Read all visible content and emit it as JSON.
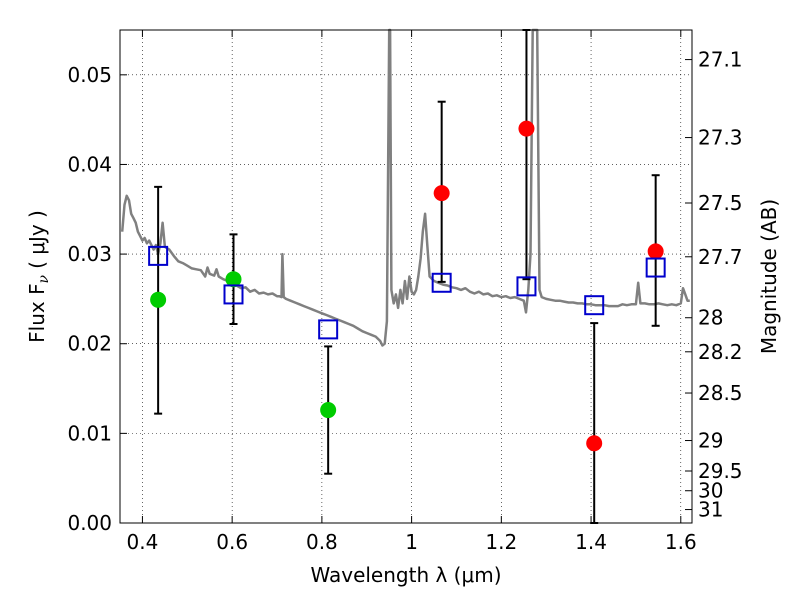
{
  "chart_data": {
    "type": "scatter",
    "title": "",
    "xlabel": "Wavelength  λ (μm)",
    "ylabel": "Flux  F",
    "ylabel_sub": "ν",
    "ylabel_unit": "( μJy )",
    "ylabel_right": "Magnitude (AB)",
    "xlim": [
      0.35,
      1.625
    ],
    "ylim": [
      0.0,
      0.055
    ],
    "grid": true,
    "x_ticks": [
      {
        "value": 0.4,
        "label": "0.4"
      },
      {
        "value": 0.6,
        "label": "0.6"
      },
      {
        "value": 0.8,
        "label": "0.8"
      },
      {
        "value": 1.0,
        "label": "1"
      },
      {
        "value": 1.2,
        "label": "1.2"
      },
      {
        "value": 1.4,
        "label": "1.4"
      },
      {
        "value": 1.6,
        "label": "1.6"
      }
    ],
    "y_ticks": [
      {
        "value": 0.0,
        "label": "0.00"
      },
      {
        "value": 0.01,
        "label": "0.01"
      },
      {
        "value": 0.02,
        "label": "0.02"
      },
      {
        "value": 0.03,
        "label": "0.03"
      },
      {
        "value": 0.04,
        "label": "0.04"
      },
      {
        "value": 0.05,
        "label": "0.05"
      }
    ],
    "right_ticks": [
      {
        "flux": 0.0517,
        "label": "27.1"
      },
      {
        "flux": 0.043,
        "label": "27.3"
      },
      {
        "flux": 0.0357,
        "label": "27.5"
      },
      {
        "flux": 0.0297,
        "label": "27.7"
      },
      {
        "flux": 0.0229,
        "label": "28"
      },
      {
        "flux": 0.0191,
        "label": "28.2"
      },
      {
        "flux": 0.0145,
        "label": "28.5"
      },
      {
        "flux": 0.0092,
        "label": "29"
      },
      {
        "flux": 0.0058,
        "label": "29.5"
      },
      {
        "flux": 0.0036,
        "label": "30"
      },
      {
        "flux": 0.0015,
        "label": "31"
      }
    ],
    "series": [
      {
        "kind": "line",
        "color": "#808080",
        "points": [
          [
            0.355,
            0.0325
          ],
          [
            0.36,
            0.0355
          ],
          [
            0.365,
            0.0365
          ],
          [
            0.37,
            0.036
          ],
          [
            0.375,
            0.0345
          ],
          [
            0.38,
            0.034
          ],
          [
            0.385,
            0.0335
          ],
          [
            0.39,
            0.0325
          ],
          [
            0.395,
            0.032
          ],
          [
            0.4,
            0.0315
          ],
          [
            0.405,
            0.0318
          ],
          [
            0.41,
            0.0312
          ],
          [
            0.415,
            0.0315
          ],
          [
            0.42,
            0.031
          ],
          [
            0.425,
            0.0305
          ],
          [
            0.43,
            0.031
          ],
          [
            0.435,
            0.03
          ],
          [
            0.44,
            0.0312
          ],
          [
            0.445,
            0.0335
          ],
          [
            0.45,
            0.0308
          ],
          [
            0.46,
            0.0305
          ],
          [
            0.47,
            0.0298
          ],
          [
            0.48,
            0.0292
          ],
          [
            0.49,
            0.029
          ],
          [
            0.5,
            0.0287
          ],
          [
            0.51,
            0.0284
          ],
          [
            0.52,
            0.0283
          ],
          [
            0.53,
            0.0282
          ],
          [
            0.54,
            0.0275
          ],
          [
            0.545,
            0.0285
          ],
          [
            0.55,
            0.0278
          ],
          [
            0.56,
            0.0276
          ],
          [
            0.565,
            0.0283
          ],
          [
            0.57,
            0.0275
          ],
          [
            0.58,
            0.0272
          ],
          [
            0.59,
            0.027
          ],
          [
            0.6,
            0.0268
          ],
          [
            0.61,
            0.0265
          ],
          [
            0.62,
            0.0262
          ],
          [
            0.63,
            0.0263
          ],
          [
            0.64,
            0.0258
          ],
          [
            0.65,
            0.026
          ],
          [
            0.66,
            0.0256
          ],
          [
            0.67,
            0.0257
          ],
          [
            0.68,
            0.0255
          ],
          [
            0.69,
            0.0256
          ],
          [
            0.7,
            0.0253
          ],
          [
            0.705,
            0.0253
          ],
          [
            0.71,
            0.0252
          ],
          [
            0.712,
            0.03
          ],
          [
            0.715,
            0.0252
          ],
          [
            0.72,
            0.025
          ],
          [
            0.73,
            0.0248
          ],
          [
            0.74,
            0.0246
          ],
          [
            0.75,
            0.0244
          ],
          [
            0.76,
            0.0242
          ],
          [
            0.77,
            0.024
          ],
          [
            0.78,
            0.0238
          ],
          [
            0.79,
            0.0236
          ],
          [
            0.8,
            0.0234
          ],
          [
            0.81,
            0.0232
          ],
          [
            0.82,
            0.023
          ],
          [
            0.83,
            0.0228
          ],
          [
            0.84,
            0.0226
          ],
          [
            0.85,
            0.0224
          ],
          [
            0.86,
            0.0222
          ],
          [
            0.87,
            0.022
          ],
          [
            0.88,
            0.0217
          ],
          [
            0.89,
            0.0214
          ],
          [
            0.9,
            0.0212
          ],
          [
            0.91,
            0.021
          ],
          [
            0.92,
            0.0208
          ],
          [
            0.93,
            0.0203
          ],
          [
            0.935,
            0.0198
          ],
          [
            0.94,
            0.02
          ],
          [
            0.945,
            0.0225
          ],
          [
            0.95,
            0.055
          ],
          [
            0.952,
            0.055
          ],
          [
            0.955,
            0.026
          ],
          [
            0.96,
            0.0245
          ],
          [
            0.965,
            0.0255
          ],
          [
            0.97,
            0.024
          ],
          [
            0.975,
            0.026
          ],
          [
            0.98,
            0.0245
          ],
          [
            0.985,
            0.027
          ],
          [
            0.99,
            0.025
          ],
          [
            0.995,
            0.0275
          ],
          [
            1.0,
            0.0258
          ],
          [
            1.005,
            0.0255
          ],
          [
            1.01,
            0.026
          ],
          [
            1.015,
            0.0275
          ],
          [
            1.02,
            0.0295
          ],
          [
            1.025,
            0.0325
          ],
          [
            1.03,
            0.0345
          ],
          [
            1.035,
            0.031
          ],
          [
            1.04,
            0.0275
          ],
          [
            1.05,
            0.027
          ],
          [
            1.06,
            0.0268
          ],
          [
            1.07,
            0.0266
          ],
          [
            1.08,
            0.0265
          ],
          [
            1.09,
            0.0263
          ],
          [
            1.1,
            0.0262
          ],
          [
            1.11,
            0.026
          ],
          [
            1.12,
            0.0262
          ],
          [
            1.13,
            0.0258
          ],
          [
            1.14,
            0.0256
          ],
          [
            1.15,
            0.0258
          ],
          [
            1.16,
            0.0255
          ],
          [
            1.17,
            0.0256
          ],
          [
            1.18,
            0.0253
          ],
          [
            1.19,
            0.0254
          ],
          [
            1.2,
            0.0252
          ],
          [
            1.21,
            0.0253
          ],
          [
            1.22,
            0.0251
          ],
          [
            1.23,
            0.0252
          ],
          [
            1.24,
            0.025
          ],
          [
            1.25,
            0.0248
          ],
          [
            1.255,
            0.0235
          ],
          [
            1.26,
            0.026
          ],
          [
            1.265,
            0.03
          ],
          [
            1.27,
            0.055
          ],
          [
            1.275,
            0.055
          ],
          [
            1.28,
            0.055
          ],
          [
            1.285,
            0.026
          ],
          [
            1.29,
            0.0252
          ],
          [
            1.3,
            0.025
          ],
          [
            1.31,
            0.0249
          ],
          [
            1.32,
            0.0248
          ],
          [
            1.33,
            0.0248
          ],
          [
            1.34,
            0.0247
          ],
          [
            1.35,
            0.0246
          ],
          [
            1.36,
            0.0246
          ],
          [
            1.37,
            0.0245
          ],
          [
            1.38,
            0.0245
          ],
          [
            1.39,
            0.0244
          ],
          [
            1.4,
            0.0244
          ],
          [
            1.41,
            0.0243
          ],
          [
            1.42,
            0.0243
          ],
          [
            1.43,
            0.0243
          ],
          [
            1.44,
            0.0242
          ],
          [
            1.45,
            0.0242
          ],
          [
            1.46,
            0.0242
          ],
          [
            1.47,
            0.0244
          ],
          [
            1.48,
            0.0243
          ],
          [
            1.49,
            0.0244
          ],
          [
            1.5,
            0.0244
          ],
          [
            1.505,
            0.0268
          ],
          [
            1.51,
            0.0245
          ],
          [
            1.52,
            0.0245
          ],
          [
            1.53,
            0.0244
          ],
          [
            1.54,
            0.0244
          ],
          [
            1.55,
            0.0245
          ],
          [
            1.56,
            0.0244
          ],
          [
            1.57,
            0.0243
          ],
          [
            1.58,
            0.0244
          ],
          [
            1.59,
            0.0243
          ],
          [
            1.6,
            0.0245
          ],
          [
            1.605,
            0.0262
          ],
          [
            1.61,
            0.0255
          ],
          [
            1.615,
            0.0248
          ],
          [
            1.62,
            0.0248
          ]
        ]
      },
      {
        "kind": "markers",
        "marker": "circle",
        "color": "#00cc00",
        "points": [
          [
            0.435,
            0.0249
          ],
          [
            0.603,
            0.0272
          ],
          [
            0.814,
            0.0126
          ]
        ]
      },
      {
        "kind": "markers",
        "marker": "circle",
        "color": "#ff0000",
        "points": [
          [
            1.067,
            0.0368
          ],
          [
            1.256,
            0.044
          ],
          [
            1.407,
            0.0089
          ],
          [
            1.544,
            0.0303
          ]
        ]
      },
      {
        "kind": "markers",
        "marker": "square",
        "color": "#0000cc",
        "points": [
          [
            0.435,
            0.0298
          ],
          [
            0.603,
            0.0255
          ],
          [
            0.814,
            0.0216
          ],
          [
            1.067,
            0.0268
          ],
          [
            1.256,
            0.0264
          ],
          [
            1.407,
            0.0243
          ],
          [
            1.544,
            0.0285
          ]
        ]
      }
    ],
    "error_bars": [
      {
        "x": 0.435,
        "low": 0.0122,
        "high": 0.0375
      },
      {
        "x": 0.603,
        "low": 0.0222,
        "high": 0.0322
      },
      {
        "x": 0.814,
        "low": 0.0055,
        "high": 0.0197
      },
      {
        "x": 1.067,
        "low": 0.0269,
        "high": 0.047
      },
      {
        "x": 1.256,
        "low": 0.0272,
        "high": 0.055
      },
      {
        "x": 1.407,
        "low": 0.0,
        "high": 0.0223
      },
      {
        "x": 1.544,
        "low": 0.022,
        "high": 0.0388
      }
    ]
  }
}
